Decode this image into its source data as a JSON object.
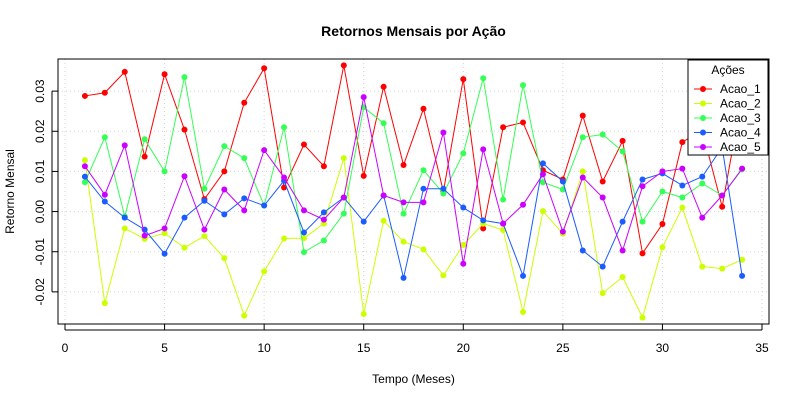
{
  "chart_data": {
    "type": "line",
    "title": "Retornos Mensais por Ação",
    "xlabel": "Tempo (Meses)",
    "ylabel": "Retorno Mensal",
    "xlim": [
      0,
      35
    ],
    "ylim": [
      -0.028,
      0.038
    ],
    "x_ticks": [
      "0",
      "5",
      "10",
      "15",
      "20",
      "25",
      "30",
      "35"
    ],
    "y_ticks": [
      "-0.02",
      "-0.01",
      "0.00",
      "0.01",
      "0.02",
      "0.03"
    ],
    "grid": true,
    "legend": {
      "title": "Ações",
      "position": "top-right"
    },
    "x": [
      1,
      2,
      3,
      4,
      5,
      6,
      7,
      8,
      9,
      10,
      11,
      12,
      13,
      14,
      15,
      16,
      17,
      18,
      19,
      20,
      21,
      22,
      23,
      24,
      25,
      26,
      27,
      28,
      29,
      30,
      31,
      32,
      33,
      34
    ],
    "series": [
      {
        "name": "Acao_1",
        "color": "#ff0000",
        "values": [
          0.0288,
          0.0296,
          0.0348,
          0.0137,
          0.0342,
          0.0204,
          0.0031,
          0.01,
          0.0271,
          0.0357,
          0.006,
          0.0167,
          0.0113,
          0.0364,
          0.0089,
          0.0311,
          0.0116,
          0.0256,
          0.005,
          0.033,
          -0.0042,
          0.021,
          0.0222,
          0.0103,
          0.008,
          0.0239,
          0.0075,
          0.0176,
          -0.0104,
          -0.0031,
          0.0173,
          0.0202,
          0.0012,
          0.0287
        ]
      },
      {
        "name": "Acao_2",
        "color": "#ccff00",
        "values": [
          0.0128,
          -0.0228,
          -0.0042,
          -0.0068,
          -0.0054,
          -0.009,
          -0.0061,
          -0.0116,
          -0.0259,
          -0.0149,
          -0.0067,
          -0.0066,
          -0.003,
          0.0133,
          -0.0255,
          -0.0023,
          -0.0075,
          -0.0094,
          -0.0159,
          -0.0083,
          -0.003,
          -0.0046,
          -0.025,
          0.0001,
          -0.0055,
          0.01,
          -0.0203,
          -0.0163,
          -0.0264,
          -0.0089,
          0.001,
          -0.0137,
          -0.0142,
          -0.012
        ]
      },
      {
        "name": "Acao_3",
        "color": "#33ff55",
        "values": [
          0.0073,
          0.0185,
          -0.0012,
          0.018,
          0.01,
          0.0335,
          0.0057,
          0.0163,
          0.0133,
          0.0015,
          0.021,
          -0.0101,
          -0.0072,
          -0.0005,
          0.026,
          0.022,
          -0.0005,
          0.0103,
          0.0045,
          0.0145,
          0.0332,
          0.003,
          0.0315,
          0.0073,
          0.0055,
          0.0185,
          0.0192,
          0.015,
          -0.0025,
          0.005,
          0.0035,
          0.007,
          0.004,
          0.0105
        ]
      },
      {
        "name": "Acao_4",
        "color": "#1a5cff",
        "values": [
          0.0087,
          0.0025,
          -0.0015,
          -0.0045,
          -0.0105,
          -0.0015,
          0.0027,
          -0.0007,
          0.0033,
          0.0015,
          0.0077,
          -0.0052,
          -0.0002,
          0.0035,
          -0.0025,
          0.004,
          -0.0165,
          0.0057,
          0.0057,
          0.001,
          -0.0022,
          -0.003,
          -0.016,
          0.012,
          0.0075,
          -0.0097,
          -0.0137,
          -0.0025,
          0.008,
          0.0095,
          0.0065,
          0.0087,
          0.016,
          -0.016
        ]
      },
      {
        "name": "Acao_5",
        "color": "#cc00ff",
        "values": [
          0.0113,
          0.0042,
          0.0165,
          -0.006,
          -0.0042,
          0.0088,
          -0.0045,
          0.0055,
          0.0003,
          0.0153,
          0.0085,
          0.0003,
          -0.002,
          0.0035,
          0.0285,
          0.004,
          0.0023,
          0.0023,
          0.0197,
          -0.013,
          0.0155,
          -0.003,
          0.0017,
          0.0093,
          -0.005,
          0.0085,
          0.0035,
          -0.0097,
          0.0063,
          0.01,
          0.0107,
          -0.0015,
          0.004,
          0.0107
        ]
      }
    ]
  }
}
